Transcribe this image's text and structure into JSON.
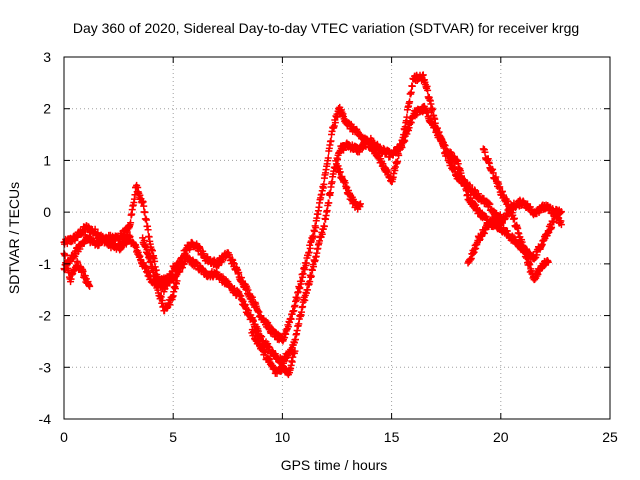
{
  "chart_data": {
    "type": "scatter",
    "title": "Day 360 of 2020, Sidereal Day-to-day VTEC variation (SDTVAR) for receiver krgg",
    "xlabel": "GPS time / hours",
    "ylabel": "SDTVAR / TECUs",
    "xlim": [
      0,
      25
    ],
    "ylim": [
      -4,
      3
    ],
    "xticks": [
      "0",
      "5",
      "10",
      "15",
      "20",
      "25"
    ],
    "yticks": [
      "-4",
      "-3",
      "-2",
      "-1",
      "0",
      "1",
      "2",
      "3"
    ],
    "grid": true,
    "marker": "+",
    "series": [
      {
        "name": "SDTVAR",
        "color": "#ff0000",
        "tracks": [
          {
            "x": [
              0.0,
              0.5,
              1.0,
              1.5,
              2.0,
              2.5,
              3.0,
              3.3,
              3.6,
              4.0,
              4.3,
              4.6,
              5.0,
              5.3,
              5.6,
              6.0,
              6.5,
              7.0,
              7.5,
              8.0,
              8.5,
              9.0,
              9.5,
              10.0,
              10.5,
              11.0,
              11.5,
              12.0,
              12.3,
              12.6,
              13.0,
              13.5,
              14.0,
              14.5,
              15.0,
              15.5,
              16.0,
              16.5,
              17.0,
              17.5,
              18.0,
              18.5,
              19.0,
              19.5,
              20.0,
              20.5,
              21.0,
              21.5,
              22.0,
              22.5,
              22.8
            ],
            "y": [
              -0.6,
              -0.5,
              -0.3,
              -0.4,
              -0.6,
              -0.7,
              -0.5,
              -0.7,
              -1.0,
              -1.3,
              -1.4,
              -1.3,
              -1.3,
              -1.1,
              -0.9,
              -1.0,
              -1.2,
              -1.2,
              -1.4,
              -1.6,
              -2.0,
              -2.4,
              -2.7,
              -2.9,
              -2.6,
              -1.7,
              -0.9,
              -0.1,
              0.7,
              1.2,
              1.3,
              1.2,
              1.4,
              1.2,
              1.1,
              1.3,
              1.9,
              2.0,
              1.6,
              1.2,
              1.0,
              0.3,
              0.0,
              -0.2,
              -0.3,
              -0.5,
              -0.7,
              -0.9,
              -0.5,
              -0.1,
              -0.2
            ]
          },
          {
            "x": [
              0.0,
              0.5,
              1.0,
              1.5,
              2.0,
              2.5,
              3.0,
              3.3,
              3.6,
              4.0,
              4.3,
              4.6,
              5.0,
              5.3,
              5.6,
              6.0,
              6.5,
              7.0,
              7.5,
              8.0,
              8.5,
              9.0,
              9.5,
              10.0,
              10.5,
              11.0,
              11.5,
              12.0,
              12.3,
              12.6,
              13.0,
              13.5,
              14.0,
              14.5,
              15.0,
              15.5,
              16.0,
              16.5,
              17.0,
              17.5,
              18.0,
              18.5,
              19.0,
              19.5,
              20.0,
              20.5,
              21.0,
              21.5,
              22.0,
              22.5,
              22.8
            ],
            "y": [
              -1.1,
              -0.8,
              -0.5,
              -0.6,
              -0.5,
              -0.5,
              -0.3,
              0.5,
              0.2,
              -0.7,
              -1.3,
              -1.5,
              -1.1,
              -1.0,
              -0.7,
              -0.6,
              -0.9,
              -1.0,
              -0.8,
              -1.2,
              -1.6,
              -2.0,
              -2.3,
              -2.5,
              -1.9,
              -1.1,
              -0.3,
              0.8,
              1.6,
              2.0,
              1.7,
              1.5,
              1.3,
              1.0,
              0.6,
              1.4,
              2.6,
              2.6,
              1.7,
              1.1,
              0.7,
              0.5,
              0.3,
              0.1,
              -0.2,
              0.1,
              0.2,
              0.0,
              0.1,
              0.0,
              0.0
            ]
          },
          {
            "x": [
              0.0,
              0.3,
              0.6,
              0.9,
              1.2
            ],
            "y": [
              -0.8,
              -1.3,
              -1.0,
              -1.2,
              -1.5
            ]
          },
          {
            "x": [
              3.6,
              4.0,
              4.3,
              4.6,
              4.9,
              5.2
            ],
            "y": [
              -0.5,
              -1.0,
              -1.5,
              -1.9,
              -1.7,
              -1.3
            ]
          },
          {
            "x": [
              8.6,
              9.0,
              9.4,
              9.7,
              10.0,
              10.3,
              10.6
            ],
            "y": [
              -2.3,
              -2.6,
              -2.9,
              -3.1,
              -3.0,
              -3.1,
              -2.6
            ]
          },
          {
            "x": [
              12.5,
              12.8,
              13.1,
              13.4,
              13.6
            ],
            "y": [
              0.9,
              0.6,
              0.3,
              0.1,
              0.1
            ]
          },
          {
            "x": [
              18.5,
              19.0,
              19.5,
              20.0
            ],
            "y": [
              -1.0,
              -0.5,
              -0.2,
              -0.1
            ]
          },
          {
            "x": [
              19.2,
              19.6,
              20.0,
              20.4,
              20.8,
              21.2,
              21.5,
              21.8,
              22.2
            ],
            "y": [
              1.2,
              0.8,
              0.4,
              0.1,
              -0.4,
              -0.9,
              -1.3,
              -1.1,
              -0.9
            ]
          }
        ]
      }
    ]
  }
}
